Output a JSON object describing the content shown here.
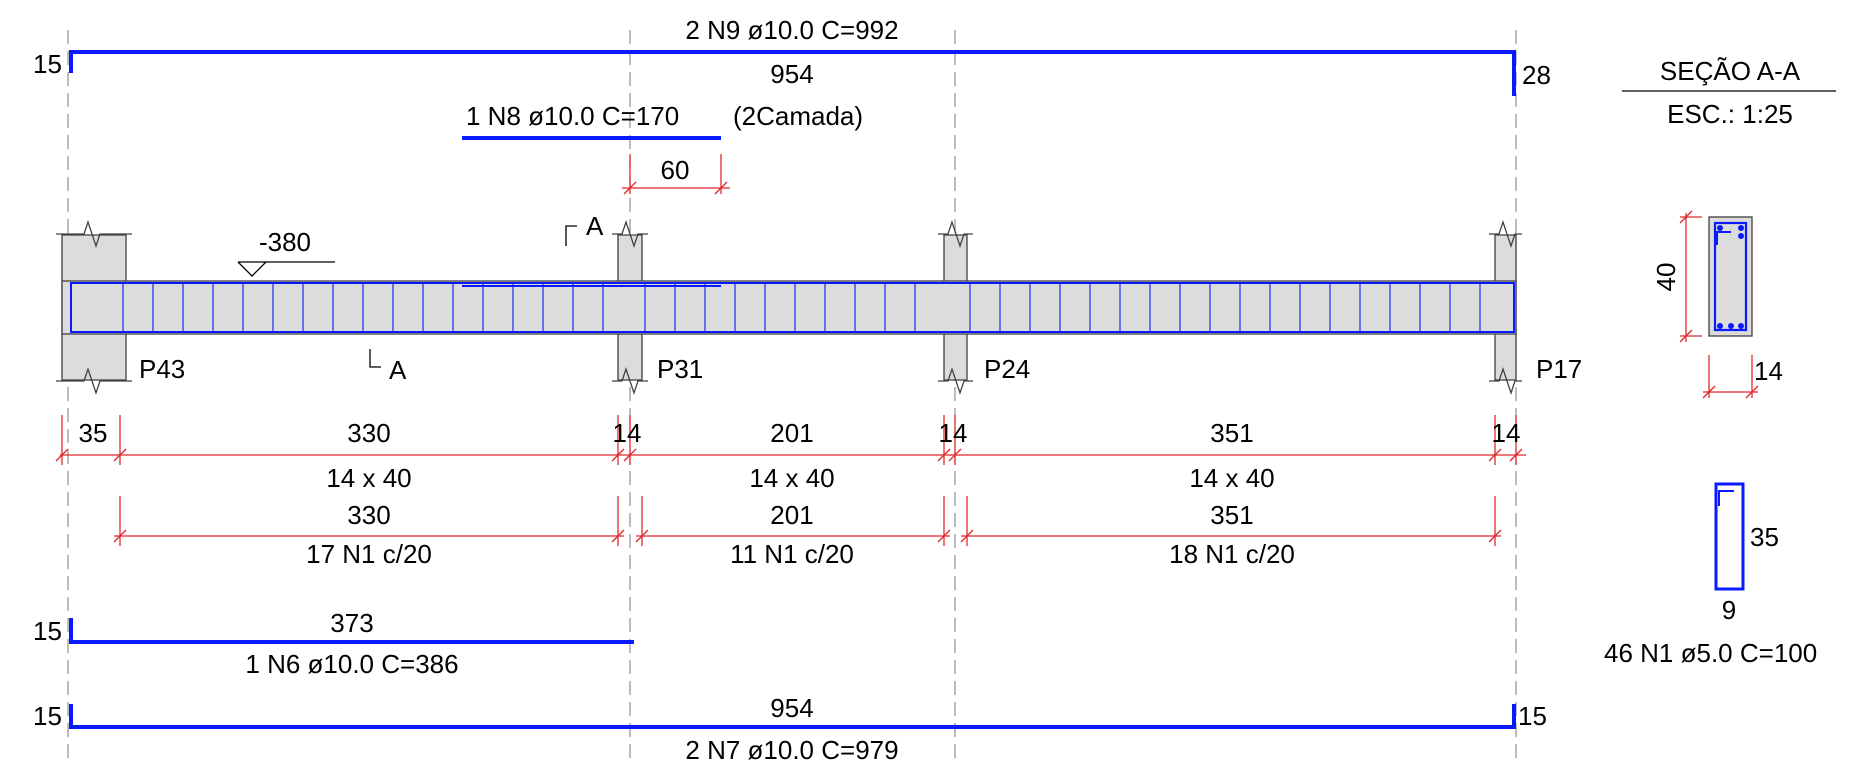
{
  "colors": {
    "rebar": "#0a1aff",
    "dimension": "#e0282c",
    "concrete_fill": "#dcdcdc",
    "outline": "#404040",
    "axis": "#909090"
  },
  "top_bar": {
    "label": "2 N9 ø10.0  C=992",
    "length": "954",
    "left_hook": "15",
    "right_hook": "28"
  },
  "second_layer_bar": {
    "label": "1 N8 ø10.0  C=170",
    "note": "(2Camada)",
    "offset": "60"
  },
  "section_marker": {
    "top": "A",
    "bottom": "A"
  },
  "level": "-380",
  "columns": {
    "p43": "P43",
    "p31": "P31",
    "p24": "P24",
    "p17": "P17"
  },
  "spans": {
    "support_start": "35",
    "span1": "330",
    "support_p31": "14",
    "span2": "201",
    "support_p24": "14",
    "span3": "351",
    "support_p17": "14",
    "section1": "14 x 40",
    "section2": "14 x 40",
    "section3": "14 x 40"
  },
  "stirrup_spans": {
    "span1": "330",
    "span2": "201",
    "span3": "351",
    "count1": "17 N1 c/20",
    "count2": "11 N1 c/20",
    "count3": "18 N1 c/20"
  },
  "bar_n6": {
    "length": "373",
    "hook": "15",
    "label": "1 N6 ø10.0  C=386"
  },
  "bar_n7": {
    "length": "954",
    "left_hook": "15",
    "right_hook": "15",
    "label": "2 N7 ø10.0  C=979"
  },
  "section_view": {
    "title": "SEÇÃO A-A",
    "scale": "ESC.: 1:25",
    "height": "40",
    "width": "14"
  },
  "stirrup_detail": {
    "height": "35",
    "width": "9",
    "label": "46 N1 ø5.0  C=100"
  }
}
